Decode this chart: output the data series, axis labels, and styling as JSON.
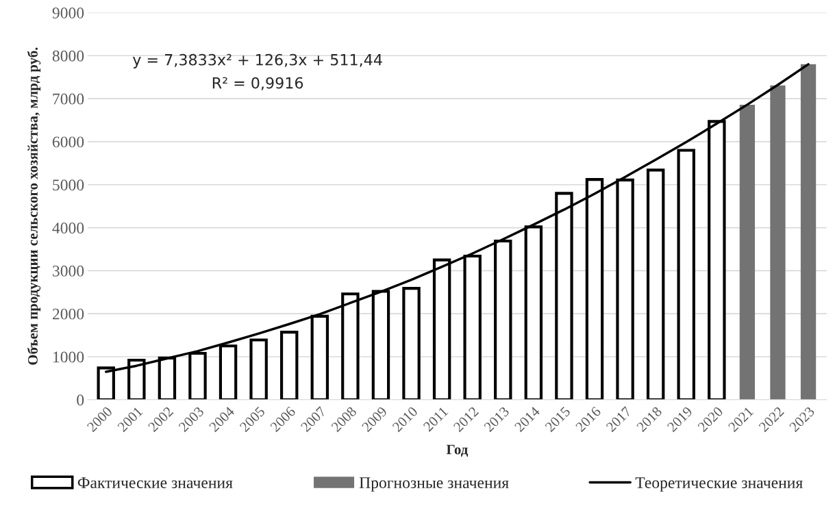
{
  "chart_data": {
    "type": "bar",
    "xlabel": "Год",
    "ylabel": "Объем продукции сельского хозяйства, млрд руб.",
    "categories": [
      "2000",
      "2001",
      "2002",
      "2003",
      "2004",
      "2005",
      "2006",
      "2007",
      "2008",
      "2009",
      "2010",
      "2011",
      "2012",
      "2013",
      "2014",
      "2015",
      "2016",
      "2017",
      "2018",
      "2019",
      "2020",
      "2021",
      "2022",
      "2023"
    ],
    "series": [
      {
        "name": "Фактические значения",
        "color": "#ffffff",
        "values": [
          740,
          920,
          970,
          1080,
          1250,
          1390,
          1570,
          1940,
          2460,
          2520,
          2590,
          3250,
          3340,
          3690,
          4020,
          4800,
          5120,
          5110,
          5340,
          5800,
          6470,
          null,
          null,
          null
        ]
      },
      {
        "name": "Прогнозные значения",
        "color": "#737373",
        "values": [
          null,
          null,
          null,
          null,
          null,
          null,
          null,
          null,
          null,
          null,
          null,
          null,
          null,
          null,
          null,
          null,
          null,
          null,
          null,
          null,
          null,
          6860,
          7310,
          7800
        ]
      },
      {
        "name": "Теоретические значения",
        "color": "#000000",
        "type": "line",
        "values": [
          650,
          790,
          960,
          1130,
          1330,
          1540,
          1760,
          1990,
          2250,
          2510,
          2790,
          3090,
          3400,
          3730,
          4070,
          4420,
          4790,
          5180,
          5580,
          5990,
          6420,
          6860,
          7320,
          7800
        ]
      }
    ],
    "ylim": [
      0,
      9000
    ],
    "yticks": [
      0,
      1000,
      2000,
      3000,
      4000,
      5000,
      6000,
      7000,
      8000,
      9000
    ],
    "grid": "y",
    "legend": "bottom",
    "marker": "none",
    "line_style": "solid",
    "annotations": [
      "y = 7,3833x² + 126,3x + 511,44",
      "R² = 0,9916"
    ]
  }
}
